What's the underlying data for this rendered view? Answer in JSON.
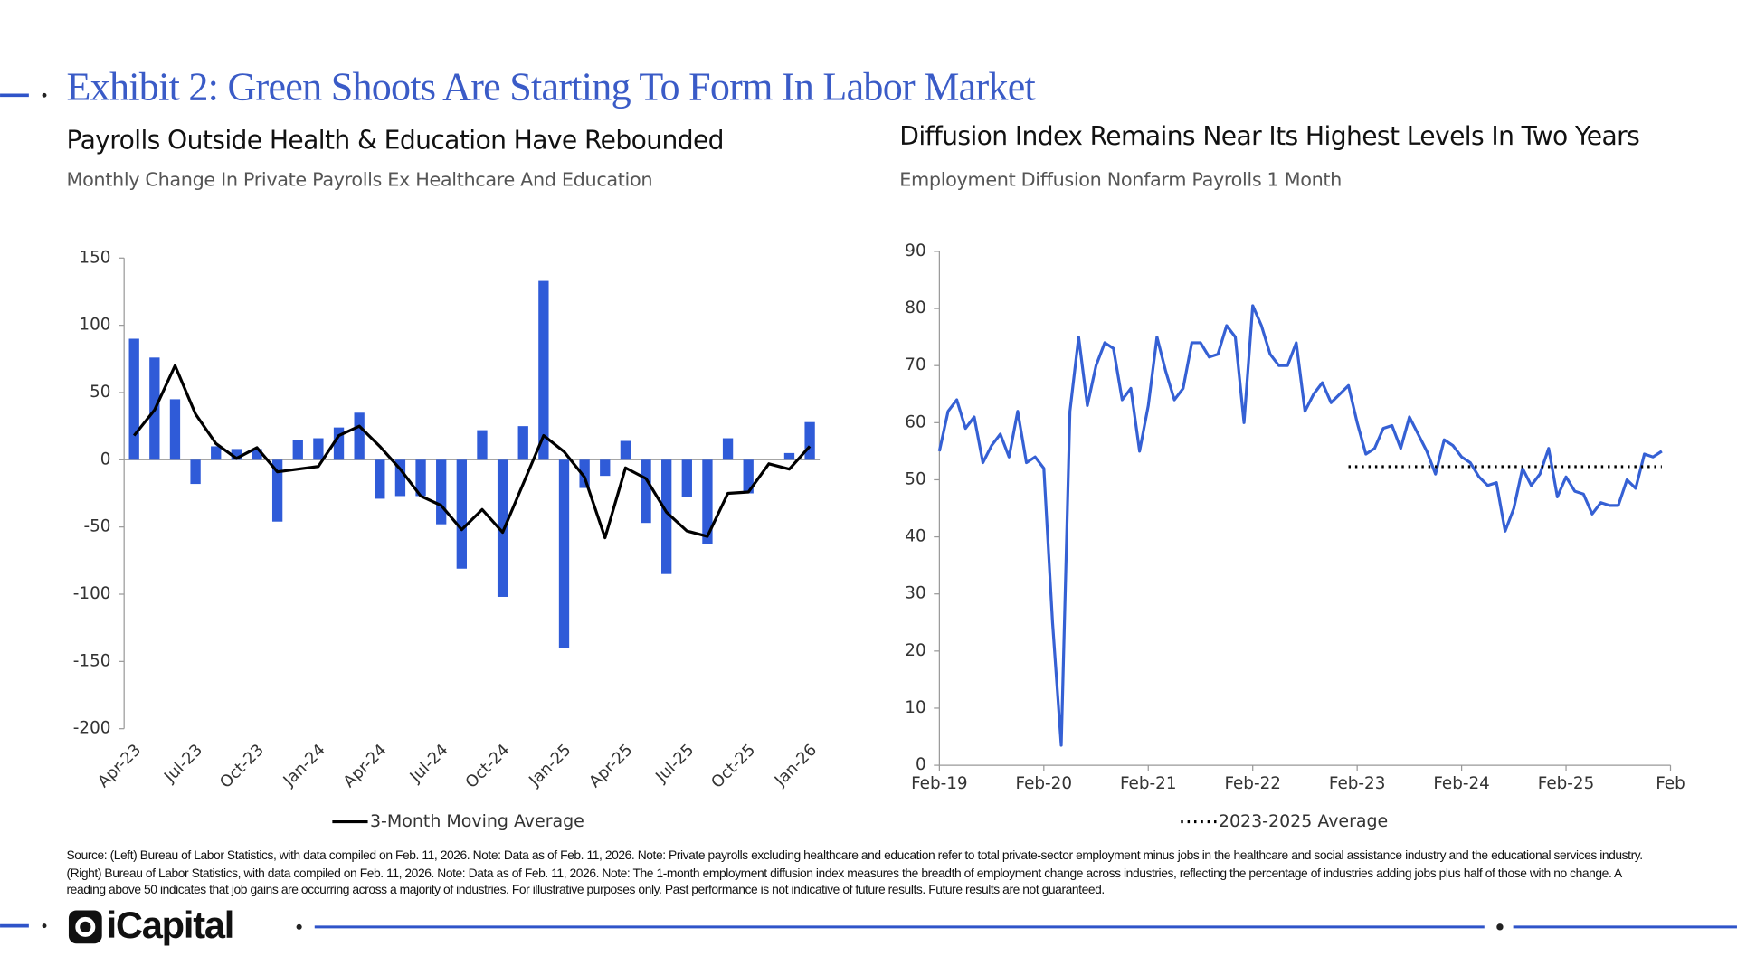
{
  "header": {
    "title": "Exhibit 2: Green Shoots Are Starting To Form In Labor Market"
  },
  "chart_data": [
    {
      "type": "bar",
      "title": "Payrolls Outside Health & Education Have Rebounded",
      "subtitle": "Monthly Change In Private Payrolls Ex Healthcare And Education",
      "categories": [
        "Apr-23",
        null,
        null,
        "Jul-23",
        null,
        null,
        "Oct-23",
        null,
        null,
        "Jan-24",
        null,
        null,
        "Apr-24",
        null,
        null,
        "Jul-24",
        null,
        null,
        "Oct-24",
        null,
        null,
        "Jan-25",
        null,
        null,
        "Apr-25",
        null,
        null,
        "Jul-25",
        null,
        null,
        "Oct-25",
        null,
        null,
        "Jan-26"
      ],
      "series": [
        {
          "type": "bar",
          "color": "#2f5bd8",
          "values": [
            90,
            76,
            45,
            -18,
            10,
            8,
            8,
            -46,
            15,
            16,
            24,
            35,
            -29,
            -27,
            -27,
            -48,
            -81,
            22,
            -102,
            25,
            133,
            -140,
            -21,
            -12,
            14,
            -47,
            -85,
            -28,
            -63,
            16,
            -25,
            0,
            5,
            28
          ]
        },
        {
          "type": "line",
          "name": "3-Month Moving Average",
          "color": "#000000",
          "values": [
            18,
            37,
            70,
            34,
            12,
            1,
            9,
            -9,
            -7,
            -5,
            18,
            25,
            10,
            -7,
            -27,
            -34,
            -52,
            -37,
            -54,
            -18,
            18,
            6,
            -13,
            -58,
            -6,
            -14,
            -39,
            -53,
            -57,
            -25,
            -24,
            -3,
            -7,
            10
          ]
        }
      ],
      "ylim": [
        -200,
        150
      ],
      "yticks": [
        -200,
        -150,
        -100,
        -50,
        0,
        50,
        100,
        150
      ]
    },
    {
      "type": "line",
      "title": "Diffusion Index Remains Near Its Highest Levels In Two Years",
      "subtitle": "Employment Diffusion Nonfarm Payrolls 1 Month",
      "categories": [
        "Feb-19",
        null,
        null,
        null,
        null,
        null,
        null,
        null,
        null,
        null,
        null,
        null,
        "Feb-20",
        null,
        null,
        null,
        null,
        null,
        null,
        null,
        null,
        null,
        null,
        null,
        "Feb-21",
        null,
        null,
        null,
        null,
        null,
        null,
        null,
        null,
        null,
        null,
        null,
        "Feb-22",
        null,
        null,
        null,
        null,
        null,
        null,
        null,
        null,
        null,
        null,
        null,
        "Feb-23",
        null,
        null,
        null,
        null,
        null,
        null,
        null,
        null,
        null,
        null,
        null,
        "Feb-24",
        null,
        null,
        null,
        null,
        null,
        null,
        null,
        null,
        null,
        null,
        null,
        "Feb-25",
        null,
        null,
        null,
        null,
        null,
        null,
        null,
        null,
        null,
        null,
        null,
        "Feb"
      ],
      "series": [
        {
          "type": "line",
          "color": "#3560d4",
          "values": [
            55,
            62,
            64,
            59,
            61,
            53,
            56,
            58,
            54,
            62,
            53,
            54,
            52,
            25,
            3.5,
            62,
            75,
            63,
            70,
            74,
            73,
            64,
            66,
            55,
            63,
            75,
            69,
            64,
            66,
            74,
            74,
            71.5,
            72,
            77,
            75,
            60,
            80.5,
            77,
            72,
            70,
            70,
            74,
            62,
            65,
            67,
            63.5,
            65,
            66.5,
            60,
            54.5,
            55.5,
            59,
            59.5,
            55.5,
            61,
            58,
            55,
            51,
            57,
            56,
            54,
            53,
            50.5,
            49,
            49.5,
            41,
            45,
            52,
            49,
            51,
            55.5,
            47,
            50.5,
            48,
            47.5,
            44,
            46,
            45.5,
            45.5,
            50,
            48.5,
            54.5,
            54,
            55,
            null
          ]
        },
        {
          "type": "line",
          "name": "2023-2025 Average",
          "color": "#000000",
          "style": "dotted",
          "values": [
            null,
            null,
            null,
            null,
            null,
            null,
            null,
            null,
            null,
            null,
            null,
            null,
            null,
            null,
            null,
            null,
            null,
            null,
            null,
            null,
            null,
            null,
            null,
            null,
            null,
            null,
            null,
            null,
            null,
            null,
            null,
            null,
            null,
            null,
            null,
            null,
            null,
            null,
            null,
            null,
            null,
            null,
            null,
            null,
            null,
            null,
            null,
            52.3,
            52.3,
            52.3,
            52.3,
            52.3,
            52.3,
            52.3,
            52.3,
            52.3,
            52.3,
            52.3,
            52.3,
            52.3,
            52.3,
            52.3,
            52.3,
            52.3,
            52.3,
            52.3,
            52.3,
            52.3,
            52.3,
            52.3,
            52.3,
            52.3,
            52.3,
            52.3,
            52.3,
            52.3,
            52.3,
            52.3,
            52.3,
            52.3,
            52.3,
            52.3,
            52.3,
            52.3,
            null
          ]
        }
      ],
      "ylim": [
        0,
        90
      ],
      "yticks": [
        0,
        10,
        20,
        30,
        40,
        50,
        60,
        70,
        80,
        90
      ]
    }
  ],
  "footer": {
    "source": "Source: (Left) Bureau of Labor Statistics, with data compiled on Feb. 11, 2026. Note: Data as of Feb. 11, 2026. Note: Private payrolls excluding healthcare and education refer to total private-sector employment minus jobs in the healthcare and social assistance industry and the educational services industry. (Right) Bureau of Labor Statistics, with data compiled on Feb. 11, 2026. Note: Data as of Feb. 11, 2026. Note: The 1-month employment diffusion index measures the breadth of employment change across industries, reflecting the percentage of industries adding jobs plus half of those with no change. A reading above 50 indicates that job gains are occurring across a majority of industries. For illustrative purposes only. Past performance is not indicative of future results. Future results are not guaranteed.",
    "logo": "iCapital"
  }
}
